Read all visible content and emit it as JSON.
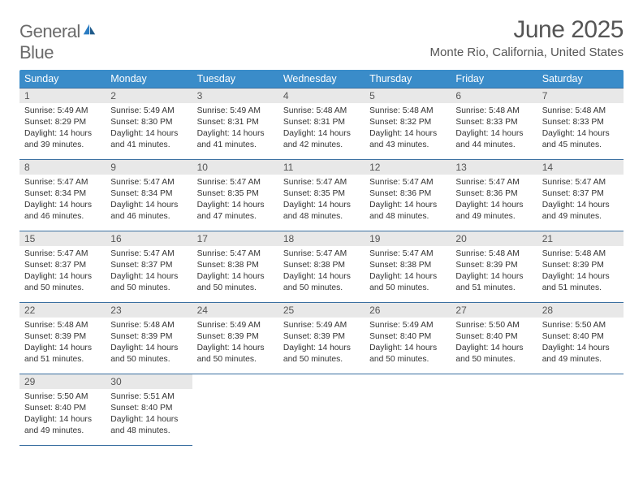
{
  "logo": {
    "word1": "General",
    "word2": "Blue"
  },
  "title": "June 2025",
  "location": "Monte Rio, California, United States",
  "colors": {
    "header_bg": "#3a8cc9",
    "border": "#3a6fa0",
    "daynum_bg": "#e8e8e8",
    "text": "#333333",
    "title": "#555555"
  },
  "weekdays": [
    "Sunday",
    "Monday",
    "Tuesday",
    "Wednesday",
    "Thursday",
    "Friday",
    "Saturday"
  ],
  "days": [
    {
      "n": "1",
      "sr": "5:49 AM",
      "ss": "8:29 PM",
      "dl": "14 hours and 39 minutes."
    },
    {
      "n": "2",
      "sr": "5:49 AM",
      "ss": "8:30 PM",
      "dl": "14 hours and 41 minutes."
    },
    {
      "n": "3",
      "sr": "5:49 AM",
      "ss": "8:31 PM",
      "dl": "14 hours and 41 minutes."
    },
    {
      "n": "4",
      "sr": "5:48 AM",
      "ss": "8:31 PM",
      "dl": "14 hours and 42 minutes."
    },
    {
      "n": "5",
      "sr": "5:48 AM",
      "ss": "8:32 PM",
      "dl": "14 hours and 43 minutes."
    },
    {
      "n": "6",
      "sr": "5:48 AM",
      "ss": "8:33 PM",
      "dl": "14 hours and 44 minutes."
    },
    {
      "n": "7",
      "sr": "5:48 AM",
      "ss": "8:33 PM",
      "dl": "14 hours and 45 minutes."
    },
    {
      "n": "8",
      "sr": "5:47 AM",
      "ss": "8:34 PM",
      "dl": "14 hours and 46 minutes."
    },
    {
      "n": "9",
      "sr": "5:47 AM",
      "ss": "8:34 PM",
      "dl": "14 hours and 46 minutes."
    },
    {
      "n": "10",
      "sr": "5:47 AM",
      "ss": "8:35 PM",
      "dl": "14 hours and 47 minutes."
    },
    {
      "n": "11",
      "sr": "5:47 AM",
      "ss": "8:35 PM",
      "dl": "14 hours and 48 minutes."
    },
    {
      "n": "12",
      "sr": "5:47 AM",
      "ss": "8:36 PM",
      "dl": "14 hours and 48 minutes."
    },
    {
      "n": "13",
      "sr": "5:47 AM",
      "ss": "8:36 PM",
      "dl": "14 hours and 49 minutes."
    },
    {
      "n": "14",
      "sr": "5:47 AM",
      "ss": "8:37 PM",
      "dl": "14 hours and 49 minutes."
    },
    {
      "n": "15",
      "sr": "5:47 AM",
      "ss": "8:37 PM",
      "dl": "14 hours and 50 minutes."
    },
    {
      "n": "16",
      "sr": "5:47 AM",
      "ss": "8:37 PM",
      "dl": "14 hours and 50 minutes."
    },
    {
      "n": "17",
      "sr": "5:47 AM",
      "ss": "8:38 PM",
      "dl": "14 hours and 50 minutes."
    },
    {
      "n": "18",
      "sr": "5:47 AM",
      "ss": "8:38 PM",
      "dl": "14 hours and 50 minutes."
    },
    {
      "n": "19",
      "sr": "5:47 AM",
      "ss": "8:38 PM",
      "dl": "14 hours and 50 minutes."
    },
    {
      "n": "20",
      "sr": "5:48 AM",
      "ss": "8:39 PM",
      "dl": "14 hours and 51 minutes."
    },
    {
      "n": "21",
      "sr": "5:48 AM",
      "ss": "8:39 PM",
      "dl": "14 hours and 51 minutes."
    },
    {
      "n": "22",
      "sr": "5:48 AM",
      "ss": "8:39 PM",
      "dl": "14 hours and 51 minutes."
    },
    {
      "n": "23",
      "sr": "5:48 AM",
      "ss": "8:39 PM",
      "dl": "14 hours and 50 minutes."
    },
    {
      "n": "24",
      "sr": "5:49 AM",
      "ss": "8:39 PM",
      "dl": "14 hours and 50 minutes."
    },
    {
      "n": "25",
      "sr": "5:49 AM",
      "ss": "8:39 PM",
      "dl": "14 hours and 50 minutes."
    },
    {
      "n": "26",
      "sr": "5:49 AM",
      "ss": "8:40 PM",
      "dl": "14 hours and 50 minutes."
    },
    {
      "n": "27",
      "sr": "5:50 AM",
      "ss": "8:40 PM",
      "dl": "14 hours and 50 minutes."
    },
    {
      "n": "28",
      "sr": "5:50 AM",
      "ss": "8:40 PM",
      "dl": "14 hours and 49 minutes."
    },
    {
      "n": "29",
      "sr": "5:50 AM",
      "ss": "8:40 PM",
      "dl": "14 hours and 49 minutes."
    },
    {
      "n": "30",
      "sr": "5:51 AM",
      "ss": "8:40 PM",
      "dl": "14 hours and 48 minutes."
    }
  ],
  "labels": {
    "sunrise": "Sunrise:",
    "sunset": "Sunset:",
    "daylight": "Daylight:"
  }
}
